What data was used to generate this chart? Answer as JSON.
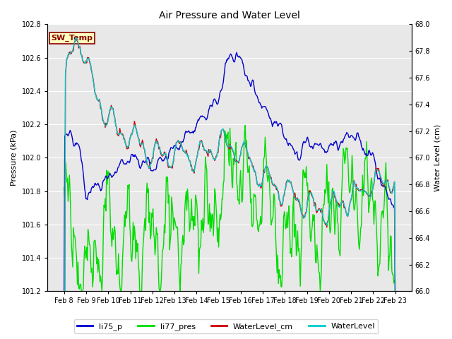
{
  "title": "Air Pressure and Water Level",
  "ylabel_left": "Pressure (kPa)",
  "ylabel_right": "Water Level (cm)",
  "ylim_left": [
    101.2,
    102.8
  ],
  "ylim_right": [
    66.0,
    68.0
  ],
  "yticks_left": [
    101.2,
    101.4,
    101.6,
    101.8,
    102.0,
    102.2,
    102.4,
    102.6,
    102.8
  ],
  "yticks_right": [
    66.0,
    66.2,
    66.4,
    66.6,
    66.8,
    67.0,
    67.2,
    67.4,
    67.6,
    67.8,
    68.0
  ],
  "xtick_labels": [
    "Feb 8",
    "Feb 9",
    "Feb 10",
    "Feb 11",
    "Feb 12",
    "Feb 13",
    "Feb 14",
    "Feb 15",
    "Feb 16",
    "Feb 17",
    "Feb 18",
    "Feb 19",
    "Feb 20",
    "Feb 21",
    "Feb 22",
    "Feb 23"
  ],
  "legend_labels": [
    "li75_p",
    "li77_pres",
    "WaterLevel_cm",
    "WaterLevel"
  ],
  "annotation_text": "SW_Temp",
  "annotation_color": "darkred",
  "annotation_bg": "#ffffc0",
  "annotation_border": "darkred",
  "li75_color": "#0000cc",
  "li77_color": "#00dd00",
  "wl_cm_color": "#cc0000",
  "wl_color": "#00cccc",
  "background_color": "#e8e8e8",
  "title_fontsize": 10,
  "tick_fontsize": 7,
  "label_fontsize": 8,
  "legend_fontsize": 8,
  "line_width": 1.0,
  "seed": 7,
  "n_points": 500
}
